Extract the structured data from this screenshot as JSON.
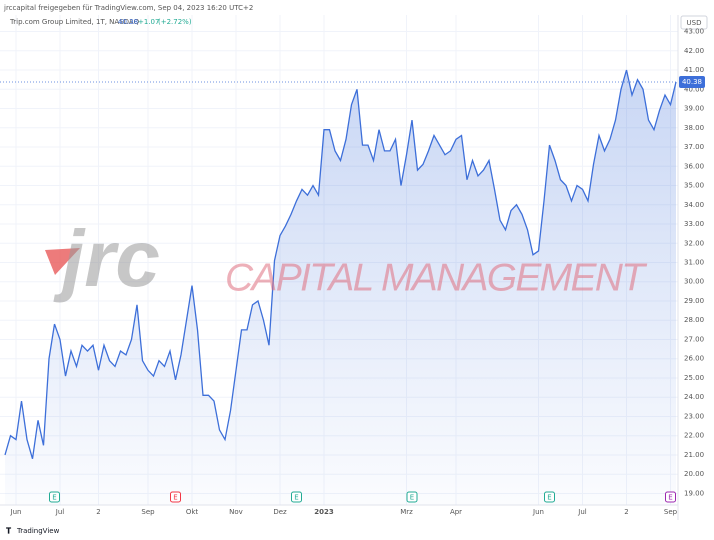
{
  "header": "jrccapital freigegeben für TradingView.com, Sep 04, 2023 16:20 UTC+2",
  "watermark": {
    "logo": "jrc",
    "text": "CAPITAL MANAGEMENT"
  },
  "footer": "TradingView",
  "chart_data": {
    "type": "area",
    "title": "Trip.com Group Limited, 1T, NASDAQ",
    "last_price": 40.38,
    "change": {
      "value": 1.07,
      "label": "+1.07"
    },
    "change_percent": {
      "value": 2.72,
      "label": "(+2.72%)"
    },
    "currency": "USD",
    "color": "#3d6fd9",
    "categories": [
      null,
      null,
      "Jun",
      null,
      null,
      null,
      null,
      null,
      null,
      null,
      "Jul",
      null,
      null,
      null,
      null,
      null,
      null,
      "2",
      null,
      null,
      null,
      null,
      null,
      null,
      null,
      null,
      "Sep",
      null,
      null,
      null,
      null,
      null,
      null,
      null,
      "Okt",
      null,
      null,
      null,
      null,
      null,
      null,
      null,
      "Nov",
      null,
      null,
      null,
      null,
      null,
      null,
      null,
      "Dez",
      null,
      null,
      null,
      null,
      null,
      null,
      null,
      "2023",
      null,
      null,
      null,
      null,
      null,
      null,
      null,
      null,
      null,
      null,
      null,
      null,
      null,
      null,
      "Mrz",
      null,
      null,
      null,
      null,
      null,
      null,
      null,
      null,
      "Apr",
      null,
      null,
      null,
      null,
      null,
      null,
      null,
      null,
      null,
      null,
      null,
      null,
      null,
      null,
      "Jun",
      null,
      null,
      null,
      null,
      null,
      null,
      null,
      "Jul",
      null,
      null,
      null,
      null,
      null,
      null,
      null,
      "2",
      null,
      null,
      null,
      null,
      null,
      null,
      null,
      "Sep",
      null
    ],
    "values": [
      21.0,
      22.0,
      21.8,
      23.8,
      21.8,
      20.8,
      22.8,
      21.5,
      26.0,
      27.8,
      27.0,
      25.1,
      26.4,
      25.6,
      26.7,
      26.4,
      26.7,
      25.4,
      26.7,
      25.9,
      25.6,
      26.4,
      26.2,
      27.0,
      28.8,
      25.9,
      25.4,
      25.1,
      25.9,
      25.6,
      26.4,
      24.9,
      26.2,
      28.0,
      29.8,
      27.5,
      24.1,
      24.1,
      23.8,
      22.3,
      21.8,
      23.3,
      25.4,
      27.5,
      27.5,
      28.8,
      29.0,
      28.0,
      26.7,
      31.1,
      32.4,
      32.9,
      33.5,
      34.2,
      34.8,
      34.5,
      35.0,
      34.5,
      37.9,
      37.9,
      36.8,
      36.3,
      37.4,
      39.2,
      40.0,
      37.1,
      37.1,
      36.3,
      37.9,
      36.8,
      36.8,
      37.4,
      35.0,
      36.6,
      38.4,
      35.8,
      36.1,
      36.8,
      37.6,
      37.1,
      36.6,
      36.8,
      37.4,
      37.6,
      35.3,
      36.3,
      35.5,
      35.8,
      36.3,
      34.8,
      33.2,
      32.7,
      33.7,
      34.0,
      33.5,
      32.7,
      31.4,
      31.6,
      34.2,
      37.1,
      36.3,
      35.3,
      35.0,
      34.2,
      35.0,
      34.8,
      34.2,
      36.1,
      37.6,
      36.8,
      37.4,
      38.4,
      40.0,
      41.0,
      39.7,
      40.5,
      40.0,
      38.4,
      37.9,
      38.9,
      39.7,
      39.2,
      40.38
    ],
    "ylim": [
      18.4,
      43.6
    ],
    "yticks": [
      {
        "value": 19,
        "label": "19.00"
      },
      {
        "value": 20,
        "label": "20.00"
      },
      {
        "value": 21,
        "label": "21.00"
      },
      {
        "value": 22,
        "label": "22.00"
      },
      {
        "value": 23,
        "label": "23.00"
      },
      {
        "value": 24,
        "label": "24.00"
      },
      {
        "value": 25,
        "label": "25.00"
      },
      {
        "value": 26,
        "label": "26.00"
      },
      {
        "value": 27,
        "label": "27.00"
      },
      {
        "value": 28,
        "label": "28.00"
      },
      {
        "value": 29,
        "label": "29.00"
      },
      {
        "value": 30,
        "label": "30.00"
      },
      {
        "value": 31,
        "label": "31.00"
      },
      {
        "value": 32,
        "label": "32.00"
      },
      {
        "value": 33,
        "label": "33.00"
      },
      {
        "value": 34,
        "label": "34.00"
      },
      {
        "value": 35,
        "label": "35.00"
      },
      {
        "value": 36,
        "label": "36.00"
      },
      {
        "value": 37,
        "label": "37.00"
      },
      {
        "value": 38,
        "label": "38.00"
      },
      {
        "value": 39,
        "label": "39.00"
      },
      {
        "value": 40,
        "label": "40.00"
      },
      {
        "value": 41,
        "label": "41.00"
      },
      {
        "value": 42,
        "label": "42.00"
      },
      {
        "value": 43,
        "label": "43.00"
      }
    ],
    "grid": true,
    "earnings_markers": [
      {
        "index": 9,
        "label": "E",
        "color": "#22ab94"
      },
      {
        "index": 31,
        "label": "E",
        "color": "#f23645"
      },
      {
        "index": 53,
        "label": "E",
        "color": "#22ab94"
      },
      {
        "index": 74,
        "label": "E",
        "color": "#22ab94"
      },
      {
        "index": 99,
        "label": "E",
        "color": "#22ab94"
      },
      {
        "index": 121,
        "label": "E",
        "color": "#9c27b0"
      }
    ]
  }
}
